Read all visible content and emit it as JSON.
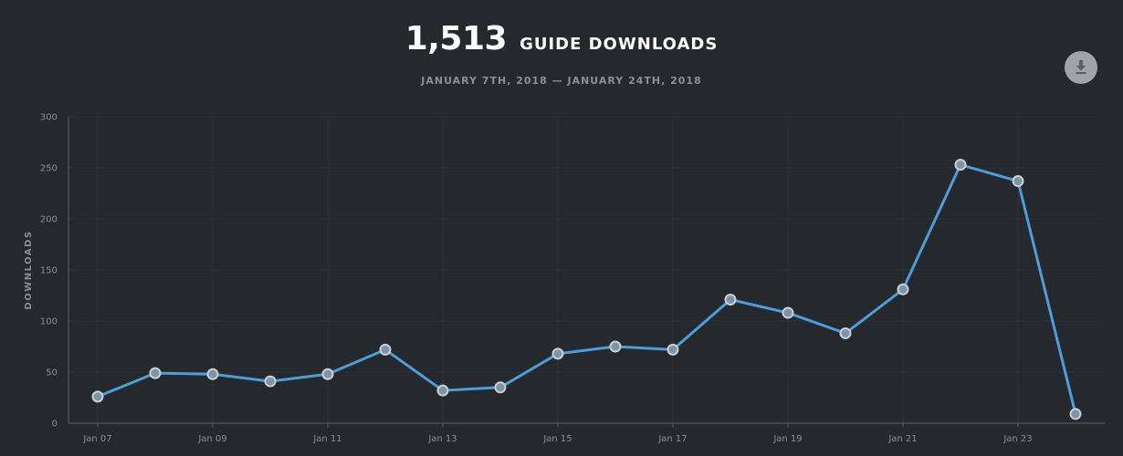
{
  "header": {
    "total": "1,513",
    "metric_label": "GUIDE DOWNLOADS",
    "date_range": "JANUARY 7TH, 2018 — JANUARY 24TH, 2018"
  },
  "toolbar": {
    "download_icon": "download-icon"
  },
  "colors": {
    "background": "#25282c",
    "line": "#4a9fd8",
    "marker_fill": "#7d93a6",
    "marker_stroke": "#c9d0d6",
    "grid": "#2f3338",
    "axis": "#5d6168",
    "tick_text": "#8a8f96"
  },
  "chart_data": {
    "type": "line",
    "title": "",
    "xlabel": "",
    "ylabel": "DOWNLOADS",
    "ylim": [
      0,
      300
    ],
    "yticks": [
      0,
      50,
      100,
      150,
      200,
      250,
      300
    ],
    "x": [
      "2018-01-07",
      "2018-01-08",
      "2018-01-09",
      "2018-01-10",
      "2018-01-11",
      "2018-01-12",
      "2018-01-13",
      "2018-01-14",
      "2018-01-15",
      "2018-01-16",
      "2018-01-17",
      "2018-01-18",
      "2018-01-19",
      "2018-01-20",
      "2018-01-21",
      "2018-01-22",
      "2018-01-23",
      "2018-01-24"
    ],
    "xtick_labels": [
      "Jan 07",
      "",
      "Jan 09",
      "",
      "Jan 11",
      "",
      "Jan 13",
      "",
      "Jan 15",
      "",
      "Jan 17",
      "",
      "Jan 19",
      "",
      "Jan 21",
      "",
      "Jan 23",
      ""
    ],
    "series": [
      {
        "values": [
          26,
          49,
          48,
          41,
          48,
          72,
          32,
          35,
          68,
          75,
          72,
          121,
          108,
          88,
          131,
          253,
          237,
          9
        ]
      }
    ],
    "grid": true,
    "legend": "none"
  }
}
